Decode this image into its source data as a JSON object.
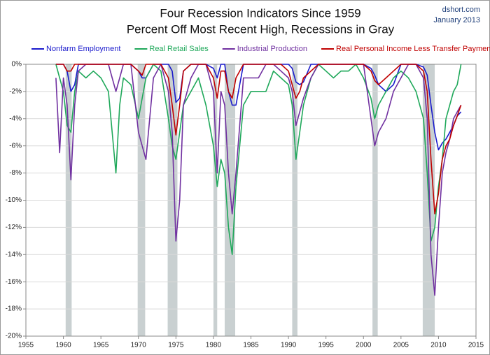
{
  "chart_data": {
    "type": "line",
    "title": "Four Recession Indicators Since 1959",
    "subtitle": "Percent Off Most Recent High, Recessions in Gray",
    "source": "dshort.com",
    "date": "January 2013",
    "x": [
      1959,
      1959.5,
      1960,
      1960.5,
      1961,
      1961.5,
      1962,
      1963,
      1964,
      1965,
      1966,
      1967,
      1967.5,
      1968,
      1969,
      1970,
      1970.5,
      1971,
      1972,
      1973,
      1974,
      1974.5,
      1975,
      1975.5,
      1976,
      1977,
      1978,
      1979,
      1980,
      1980.5,
      1981,
      1981.5,
      1982,
      1982.5,
      1983,
      1984,
      1985,
      1986,
      1987,
      1988,
      1989,
      1990,
      1990.5,
      1991,
      1991.5,
      1992,
      1993,
      1994,
      1995,
      1996,
      1997,
      1998,
      1999,
      2000,
      2001,
      2001.5,
      2002,
      2003,
      2004,
      2005,
      2006,
      2007,
      2008,
      2008.5,
      2009,
      2009.5,
      2010,
      2010.5,
      2011,
      2011.5,
      2012,
      2012.5,
      2013
    ],
    "series": [
      {
        "name": "Nonfarm Employment",
        "color": "#1a1acc",
        "values": [
          0,
          0,
          0,
          -0.5,
          -2,
          -1.5,
          0,
          0,
          0,
          0,
          0,
          0,
          0,
          0,
          0,
          -0.5,
          -1,
          -1,
          0,
          0,
          0,
          -0.5,
          -2.8,
          -2.5,
          -0.5,
          0,
          0,
          0,
          -0.3,
          -1,
          0,
          0,
          -2,
          -3,
          -3,
          0,
          0,
          0,
          0,
          0,
          0,
          0,
          -0.3,
          -1.3,
          -1.5,
          -1.3,
          0,
          0,
          0,
          0,
          0,
          0,
          0,
          0,
          -0.3,
          -0.8,
          -1.5,
          -2,
          -1.5,
          0,
          0,
          0,
          -0.2,
          -0.8,
          -3,
          -5,
          -6.3,
          -5.8,
          -5.5,
          -5,
          -4.5,
          -3.8,
          -3.5
        ]
      },
      {
        "name": "Real Retail Sales",
        "color": "#1fa85a",
        "values": [
          0,
          -1,
          -2,
          -4.5,
          -5,
          -2,
          -0.5,
          -1,
          -0.5,
          -1,
          -2,
          -8,
          -3,
          -1,
          -1.5,
          -4,
          -2.5,
          -1,
          0,
          -0.5,
          -4,
          -6,
          -7,
          -5,
          -3,
          -2,
          -1,
          -3,
          -6,
          -9,
          -7,
          -8,
          -12,
          -14,
          -9,
          -3,
          -2,
          -2,
          -2,
          -0.5,
          -1,
          -1.5,
          -3,
          -7,
          -5,
          -3,
          -1,
          0,
          -0.5,
          -1,
          -0.5,
          -0.5,
          0,
          -1,
          -2.5,
          -4,
          -3,
          -2,
          -1,
          -0.5,
          -1,
          -2,
          -4,
          -8,
          -13,
          -12,
          -9,
          -7,
          -4,
          -3,
          -2,
          -1.5,
          0
        ]
      },
      {
        "name": "Industrial Production",
        "color": "#7030a0",
        "values": [
          -1,
          -6.5,
          -1,
          -3,
          -8.5,
          -3,
          -0.5,
          0,
          0,
          0,
          0,
          -2,
          -1,
          0,
          0,
          -5,
          -6,
          -7,
          -1,
          0,
          -2,
          -5,
          -13,
          -10,
          -3,
          -1,
          0,
          0,
          -2,
          -8,
          -2,
          -3,
          -8,
          -11,
          -8,
          -1,
          -1,
          -1,
          0,
          0,
          -0.5,
          -1,
          -2,
          -4.5,
          -3.5,
          -2.5,
          -1,
          0,
          0,
          0,
          0,
          0,
          0,
          0,
          -4,
          -6,
          -5,
          -4,
          -2,
          -1,
          0,
          0,
          -1,
          -4,
          -14,
          -17,
          -12,
          -8,
          -6.5,
          -5.5,
          -4,
          -3.5,
          -3
        ]
      },
      {
        "name": "Real Personal Income Less Transfer Payments",
        "color": "#c00000",
        "values": [
          0,
          0,
          0,
          -0.5,
          -0.5,
          0,
          0,
          0,
          0,
          0,
          0,
          0,
          0,
          0,
          0,
          -0.5,
          -0.8,
          0,
          0,
          0,
          -1,
          -3,
          -5.2,
          -3,
          -0.5,
          0,
          0,
          0,
          -1,
          -2.5,
          -0.5,
          -0.5,
          -2,
          -2.5,
          -1,
          0,
          0,
          0,
          0,
          0,
          0,
          -0.5,
          -1.5,
          -2.5,
          -2,
          -1,
          -0.5,
          0,
          0,
          0,
          0,
          0,
          0,
          0,
          -0.5,
          -1.2,
          -1.5,
          -1,
          -0.5,
          0,
          0,
          0,
          -0.5,
          -2,
          -7,
          -11,
          -9.5,
          -7,
          -6,
          -5.5,
          -4.5,
          -3.8,
          -3
        ]
      }
    ],
    "recessions": [
      [
        1960.3,
        1961.1
      ],
      [
        1969.9,
        1970.9
      ],
      [
        1973.9,
        1975.2
      ],
      [
        1980.0,
        1980.5
      ],
      [
        1981.5,
        1982.9
      ],
      [
        1990.5,
        1991.2
      ],
      [
        2001.2,
        2001.9
      ],
      [
        2007.9,
        2009.5
      ]
    ],
    "recession_color": "#c9d0d1",
    "xlim": [
      1955,
      2015
    ],
    "xticks": [
      1955,
      1960,
      1965,
      1970,
      1975,
      1980,
      1985,
      1990,
      1995,
      2000,
      2005,
      2010,
      2015
    ],
    "ylim": [
      -20,
      0
    ],
    "yticks": [
      {
        "value": 0,
        "label": "0%"
      },
      {
        "value": -2,
        "label": "-2%"
      },
      {
        "value": -4,
        "label": "-4%"
      },
      {
        "value": -6,
        "label": "-6%"
      },
      {
        "value": -8,
        "label": "-8%"
      },
      {
        "value": -10,
        "label": "-10%"
      },
      {
        "value": -12,
        "label": "-12%"
      },
      {
        "value": -14,
        "label": "-14%"
      },
      {
        "value": -16,
        "label": "-16%"
      },
      {
        "value": -18,
        "label": "-18%"
      },
      {
        "value": -20,
        "label": "-20%"
      }
    ],
    "grid": true
  }
}
